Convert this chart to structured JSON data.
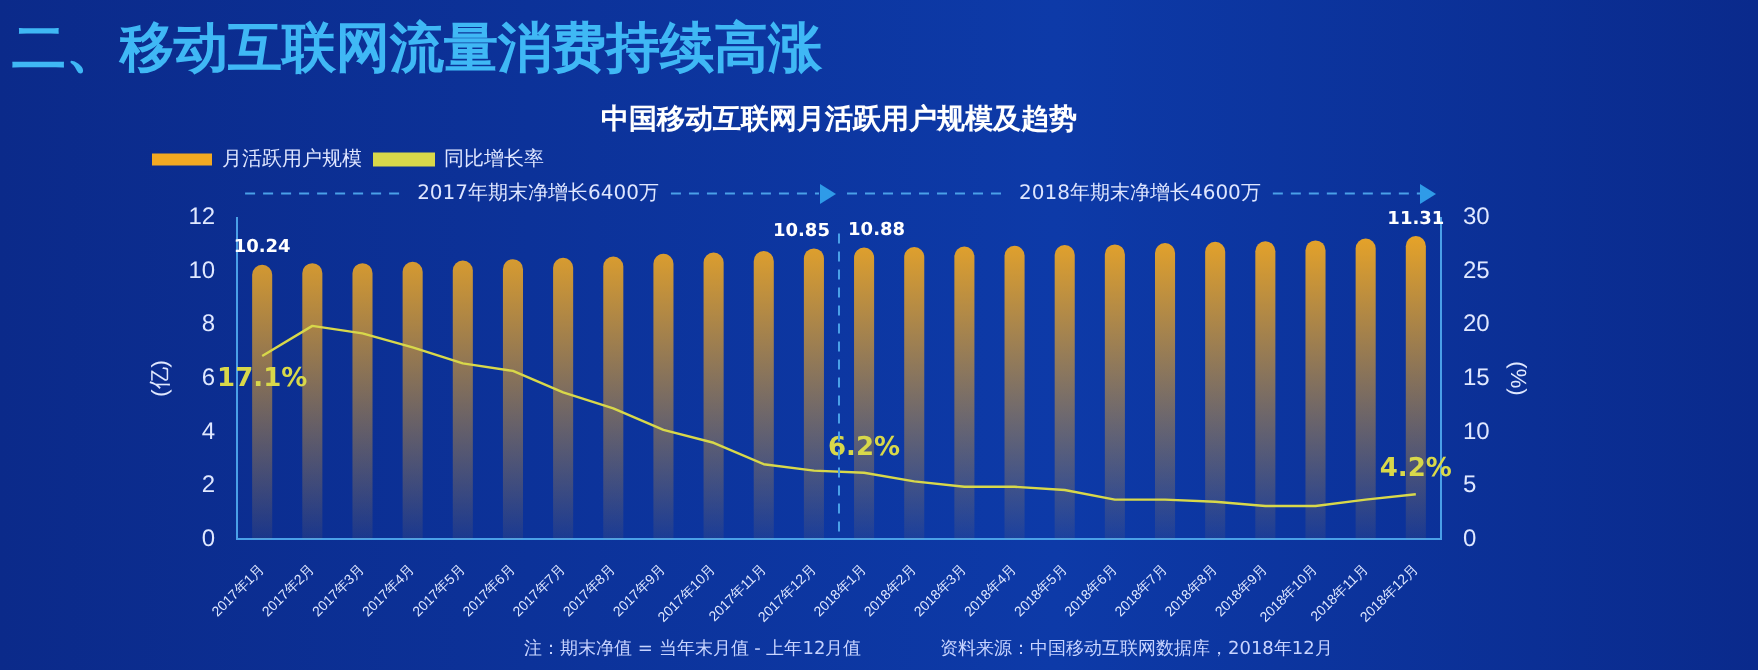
{
  "chart_data": {
    "type": "bar",
    "title": "二、移动互联网流量消费持续高涨",
    "subtitle": "中国移动互联网月活跃用户规模及趋势",
    "categories": [
      "2017年1月",
      "2017年2月",
      "2017年3月",
      "2017年4月",
      "2017年5月",
      "2017年6月",
      "2017年7月",
      "2017年8月",
      "2017年9月",
      "2017年10月",
      "2017年11月",
      "2017年12月",
      "2018年1月",
      "2018年2月",
      "2018年3月",
      "2018年4月",
      "2018年5月",
      "2018年6月",
      "2018年7月",
      "2018年8月",
      "2018年9月",
      "2018年10月",
      "2018年11月",
      "2018年12月"
    ],
    "series": [
      {
        "name": "月活跃用户规模",
        "color": "#f2a922",
        "values": [
          10.24,
          10.3,
          10.3,
          10.35,
          10.4,
          10.45,
          10.5,
          10.55,
          10.65,
          10.7,
          10.75,
          10.85,
          10.88,
          10.9,
          10.92,
          10.95,
          10.98,
          11.0,
          11.05,
          11.1,
          11.12,
          11.15,
          11.22,
          11.31
        ],
        "value_labels": [
          "10.24",
          null,
          null,
          null,
          null,
          null,
          null,
          null,
          null,
          null,
          null,
          "10.85",
          "10.88",
          null,
          null,
          null,
          null,
          null,
          null,
          null,
          null,
          null,
          null,
          "11.31"
        ]
      },
      {
        "name": "同比增长率",
        "type": "line",
        "axis": "y2",
        "color": "#d8d84a",
        "values": [
          17.1,
          19.9,
          19.2,
          17.9,
          16.4,
          15.7,
          13.7,
          12.2,
          10.2,
          9.0,
          7.0,
          6.4,
          6.2,
          5.4,
          4.9,
          4.9,
          4.6,
          3.7,
          3.7,
          3.5,
          3.1,
          3.1,
          3.7,
          4.2
        ],
        "value_labels": [
          "17.1%",
          null,
          null,
          null,
          null,
          null,
          null,
          null,
          null,
          null,
          null,
          null,
          "6.2%",
          null,
          null,
          null,
          null,
          null,
          null,
          null,
          null,
          null,
          null,
          "4.2%"
        ]
      }
    ],
    "ylabel": "(亿)",
    "y2label": "(%)",
    "ylim": [
      0,
      12
    ],
    "yticks": [
      0,
      2,
      4,
      6,
      8,
      10,
      12
    ],
    "y2lim": [
      0,
      30
    ],
    "y2ticks": [
      0,
      5,
      10,
      15,
      20,
      25,
      30
    ],
    "grid": false,
    "legend": "top left",
    "marker": "none",
    "line_style": "solid",
    "annotations": [
      "2017年期末净增长6400万",
      "2018年期末净增长4600万",
      "注：期末净值 = 当年末月值 - 上年12月值",
      "资料来源：中国移动互联网数据库，2018年12月"
    ]
  }
}
